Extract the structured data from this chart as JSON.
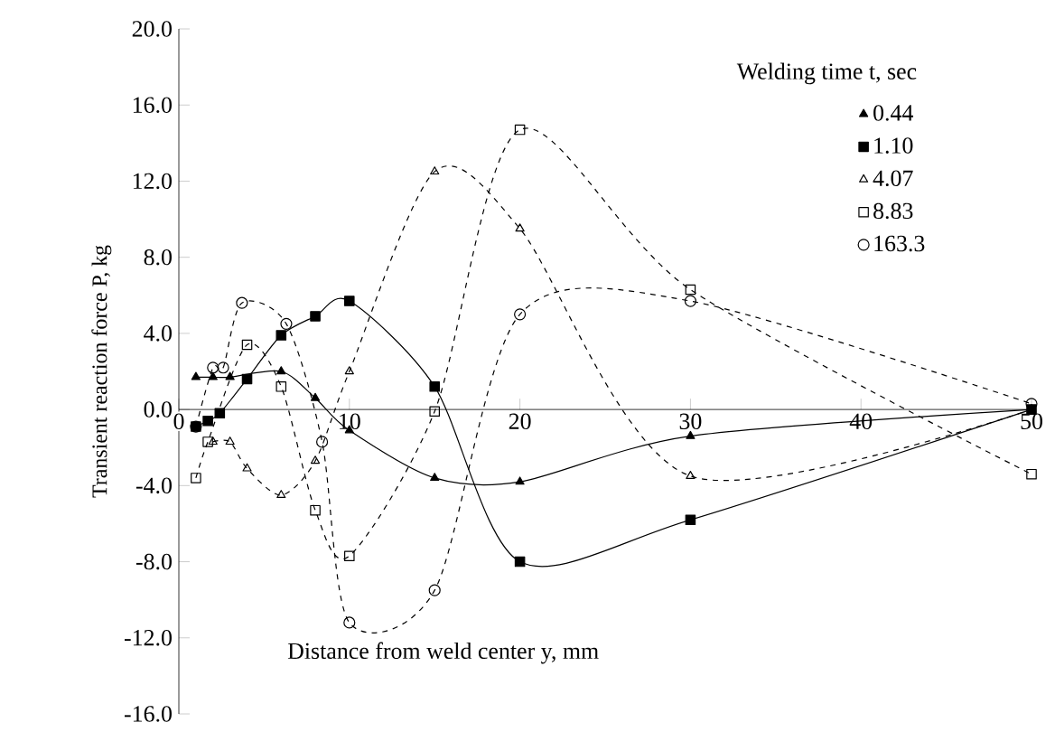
{
  "chart_data": {
    "type": "line",
    "xlabel": "Distance from weld center y, mm",
    "ylabel": "Transient reaction force P, kg",
    "legend_title": "Welding time t, sec",
    "legend": "top right",
    "grid": false,
    "xlim": [
      0,
      50
    ],
    "xticks": [
      0,
      10,
      20,
      30,
      40,
      50
    ],
    "ylim": [
      -16,
      20
    ],
    "yticks": [
      {
        "value": -16,
        "label": "-16.0"
      },
      {
        "value": -12,
        "label": "-12.0"
      },
      {
        "value": -8,
        "label": "-8.0"
      },
      {
        "value": -4,
        "label": "-4.0"
      },
      {
        "value": 0,
        "label": "0.0"
      },
      {
        "value": 4,
        "label": "4.0"
      },
      {
        "value": 8,
        "label": "8.0"
      },
      {
        "value": 12,
        "label": "12.0"
      },
      {
        "value": 16,
        "label": "16.0"
      },
      {
        "value": 20,
        "label": "20.0"
      }
    ],
    "series": [
      {
        "name": "0.44",
        "color": "#000000",
        "marker": "triangle",
        "line_style": "solid",
        "x": [
          1,
          2,
          3,
          6,
          8,
          10,
          15,
          20,
          30,
          50
        ],
        "values": [
          1.7,
          1.7,
          1.7,
          2.0,
          0.6,
          -1.1,
          -3.6,
          -3.8,
          -1.4,
          0
        ]
      },
      {
        "name": "1.10",
        "color": "#000000",
        "marker": "square",
        "line_style": "solid",
        "x": [
          1,
          1.7,
          2.4,
          4,
          6,
          8,
          10,
          15,
          20,
          30,
          50
        ],
        "values": [
          -0.9,
          -0.6,
          -0.2,
          1.6,
          3.9,
          4.9,
          5.7,
          1.2,
          -8.0,
          -5.8,
          0
        ]
      },
      {
        "name": "4.07",
        "color": "#000000",
        "marker": "triangle",
        "line_style": "dashed",
        "x": [
          2,
          3,
          4,
          6,
          8,
          10,
          15,
          20,
          30,
          50
        ],
        "values": [
          -1.7,
          -1.7,
          -3.1,
          -4.5,
          -2.7,
          2.0,
          12.5,
          9.5,
          -3.5,
          0
        ]
      },
      {
        "name": "8.83",
        "color": "#000000",
        "marker": "square",
        "line_style": "dashed",
        "x": [
          1,
          1.7,
          4,
          6,
          8,
          10,
          15,
          20,
          30,
          50
        ],
        "values": [
          -3.6,
          -1.7,
          3.4,
          1.2,
          -5.3,
          -7.7,
          -0.1,
          14.7,
          6.3,
          -3.4
        ]
      },
      {
        "name": "163.3",
        "color": "#000000",
        "marker": "circle",
        "line_style": "dashed",
        "x": [
          1,
          2,
          2.6,
          3.7,
          6.3,
          8.4,
          10,
          15,
          20,
          30,
          50
        ],
        "values": [
          -0.9,
          2.2,
          2.2,
          5.6,
          4.5,
          -1.7,
          -11.2,
          -9.5,
          5.0,
          5.7,
          0.3
        ]
      }
    ]
  }
}
